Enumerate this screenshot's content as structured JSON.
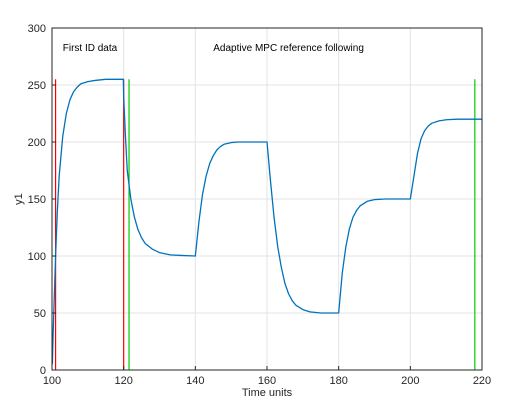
{
  "chart_data": {
    "type": "line",
    "title": "",
    "xlabel": "Time units",
    "ylabel": "y1",
    "xlim": [
      100,
      220
    ],
    "ylim": [
      0,
      300
    ],
    "xticks": [
      100,
      120,
      140,
      160,
      180,
      200,
      220
    ],
    "yticks": [
      0,
      50,
      100,
      150,
      200,
      250,
      300
    ],
    "grid": true,
    "annotations": [
      {
        "text": "First ID data",
        "x": 103,
        "y": 280
      },
      {
        "text": "Adaptive MPC reference following",
        "x": 145,
        "y": 280
      }
    ],
    "vertical_markers": [
      {
        "color": "#ff0000",
        "x": 101,
        "ymax": 255
      },
      {
        "color": "#ff0000",
        "x": 120,
        "ymax": 255
      },
      {
        "color": "#00cc00",
        "x": 121.5,
        "ymax": 255
      },
      {
        "color": "#00cc00",
        "x": 218,
        "ymax": 255
      }
    ],
    "series": [
      {
        "color": "#0072bd",
        "x": [
          100.1,
          100.3,
          100.6,
          101.0,
          101.5,
          102.0,
          103.0,
          104.0,
          105.0,
          106.0,
          107.0,
          108.0,
          110.0,
          112.0,
          115.0,
          118.0,
          119.9,
          120.0,
          120.5,
          121.0,
          122.0,
          123.0,
          124.0,
          125.0,
          126.0,
          128.0,
          130.0,
          133.0,
          136.0,
          140.0,
          141.0,
          142.0,
          143.0,
          144.0,
          145.0,
          146.0,
          147.0,
          148.0,
          150.0,
          152.0,
          155.0,
          158.0,
          160.0,
          161.0,
          162.0,
          163.0,
          164.0,
          165.0,
          166.0,
          167.0,
          168.0,
          170.0,
          172.0,
          175.0,
          178.0,
          180.0,
          181.0,
          182.0,
          183.0,
          184.0,
          185.0,
          186.0,
          188.0,
          190.0,
          193.0,
          196.0,
          200.0,
          201.0,
          202.0,
          203.0,
          204.0,
          205.0,
          206.0,
          208.0,
          210.0,
          213.0,
          216.0,
          220.0
        ],
        "y": [
          5,
          30,
          60,
          100,
          140,
          170,
          205,
          225,
          237,
          244,
          248,
          251,
          253,
          254,
          255,
          255,
          255,
          240,
          205,
          175,
          150,
          134,
          123,
          116,
          111,
          106,
          103,
          101,
          100.5,
          100,
          130,
          154,
          170,
          181,
          188,
          193,
          196,
          198,
          199.5,
          200,
          200,
          200,
          200,
          165,
          133,
          108,
          90,
          76,
          67,
          61,
          57,
          53,
          51,
          50,
          50,
          50,
          85,
          108,
          124,
          134,
          140,
          144,
          148,
          149.5,
          150,
          150,
          150,
          170,
          190,
          203,
          210,
          214,
          216.5,
          218.5,
          219.5,
          220,
          220,
          220
        ]
      }
    ]
  }
}
